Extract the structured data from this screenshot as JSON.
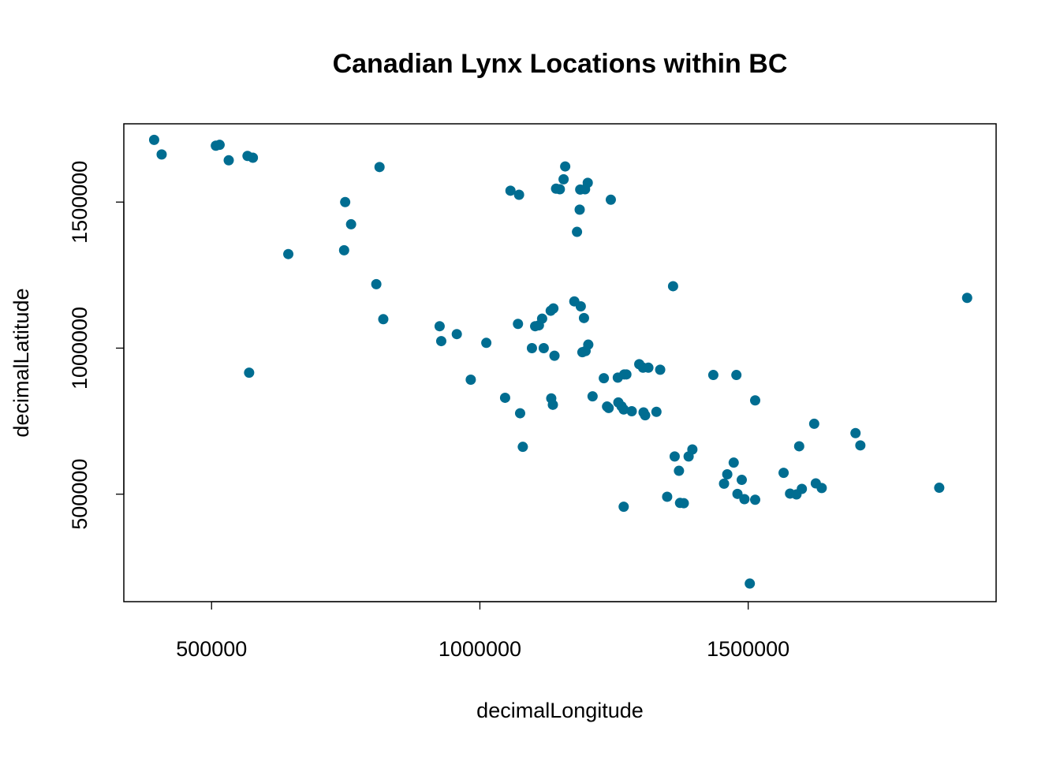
{
  "chart_data": {
    "type": "scatter",
    "title": "Canadian Lynx Locations within BC",
    "xlabel": "decimalLongitude",
    "ylabel": "decimalLatitude",
    "xlim": [
      336500,
      1962000
    ],
    "ylim": [
      132000,
      1768000
    ],
    "xticks": [
      {
        "value": 500000,
        "label": "500000"
      },
      {
        "value": 1000000,
        "label": "1000000"
      },
      {
        "value": 1500000,
        "label": "1500000"
      }
    ],
    "yticks": [
      {
        "value": 500000,
        "label": "500000"
      },
      {
        "value": 1000000,
        "label": "1000000"
      },
      {
        "value": 1500000,
        "label": "1500000"
      }
    ],
    "grid": false,
    "point_color": "#006d91",
    "points": [
      {
        "x": 393000,
        "y": 1713000
      },
      {
        "x": 407000,
        "y": 1663000
      },
      {
        "x": 508000,
        "y": 1693000
      },
      {
        "x": 515000,
        "y": 1696000
      },
      {
        "x": 532000,
        "y": 1643000
      },
      {
        "x": 567000,
        "y": 1658000
      },
      {
        "x": 577000,
        "y": 1652000
      },
      {
        "x": 570000,
        "y": 916000
      },
      {
        "x": 643000,
        "y": 1322000
      },
      {
        "x": 749000,
        "y": 1500000
      },
      {
        "x": 760000,
        "y": 1424000
      },
      {
        "x": 747000,
        "y": 1335000
      },
      {
        "x": 807000,
        "y": 1219000
      },
      {
        "x": 813000,
        "y": 1620000
      },
      {
        "x": 820000,
        "y": 1099000
      },
      {
        "x": 925000,
        "y": 1075000
      },
      {
        "x": 928000,
        "y": 1024000
      },
      {
        "x": 957000,
        "y": 1048000
      },
      {
        "x": 983000,
        "y": 892000
      },
      {
        "x": 1012000,
        "y": 1018000
      },
      {
        "x": 1047000,
        "y": 830000
      },
      {
        "x": 1057000,
        "y": 1539000
      },
      {
        "x": 1073000,
        "y": 1525000
      },
      {
        "x": 1071000,
        "y": 1083000
      },
      {
        "x": 1075000,
        "y": 777000
      },
      {
        "x": 1080000,
        "y": 662000
      },
      {
        "x": 1097000,
        "y": 1000000
      },
      {
        "x": 1103000,
        "y": 1075000
      },
      {
        "x": 1110000,
        "y": 1078000
      },
      {
        "x": 1116000,
        "y": 1101000
      },
      {
        "x": 1119000,
        "y": 1000000
      },
      {
        "x": 1132000,
        "y": 1128000
      },
      {
        "x": 1137000,
        "y": 1136000
      },
      {
        "x": 1133000,
        "y": 828000
      },
      {
        "x": 1136000,
        "y": 806000
      },
      {
        "x": 1139000,
        "y": 974000
      },
      {
        "x": 1142000,
        "y": 1546000
      },
      {
        "x": 1149000,
        "y": 1544000
      },
      {
        "x": 1156000,
        "y": 1578000
      },
      {
        "x": 1159000,
        "y": 1622000
      },
      {
        "x": 1176000,
        "y": 1160000
      },
      {
        "x": 1181000,
        "y": 1398000
      },
      {
        "x": 1186000,
        "y": 1474000
      },
      {
        "x": 1187000,
        "y": 1543000
      },
      {
        "x": 1188000,
        "y": 1143000
      },
      {
        "x": 1196000,
        "y": 1544000
      },
      {
        "x": 1201000,
        "y": 1566000
      },
      {
        "x": 1194000,
        "y": 1103000
      },
      {
        "x": 1191000,
        "y": 986000
      },
      {
        "x": 1197000,
        "y": 990000
      },
      {
        "x": 1202000,
        "y": 1012000
      },
      {
        "x": 1210000,
        "y": 835000
      },
      {
        "x": 1244000,
        "y": 1508000
      },
      {
        "x": 1231000,
        "y": 897000
      },
      {
        "x": 1237000,
        "y": 800000
      },
      {
        "x": 1240000,
        "y": 795000
      },
      {
        "x": 1257000,
        "y": 899000
      },
      {
        "x": 1258000,
        "y": 814000
      },
      {
        "x": 1264000,
        "y": 801000
      },
      {
        "x": 1268000,
        "y": 790000
      },
      {
        "x": 1269000,
        "y": 910000
      },
      {
        "x": 1273000,
        "y": 910000
      },
      {
        "x": 1268000,
        "y": 457000
      },
      {
        "x": 1283000,
        "y": 784000
      },
      {
        "x": 1297000,
        "y": 945000
      },
      {
        "x": 1304000,
        "y": 933000
      },
      {
        "x": 1305000,
        "y": 780000
      },
      {
        "x": 1308000,
        "y": 770000
      },
      {
        "x": 1314000,
        "y": 933000
      },
      {
        "x": 1329000,
        "y": 782000
      },
      {
        "x": 1336000,
        "y": 926000
      },
      {
        "x": 1349000,
        "y": 491000
      },
      {
        "x": 1360000,
        "y": 1212000
      },
      {
        "x": 1363000,
        "y": 629000
      },
      {
        "x": 1371000,
        "y": 580000
      },
      {
        "x": 1373000,
        "y": 470000
      },
      {
        "x": 1380000,
        "y": 469000
      },
      {
        "x": 1389000,
        "y": 629000
      },
      {
        "x": 1396000,
        "y": 653000
      },
      {
        "x": 1435000,
        "y": 908000
      },
      {
        "x": 1455000,
        "y": 536000
      },
      {
        "x": 1461000,
        "y": 568000
      },
      {
        "x": 1473000,
        "y": 608000
      },
      {
        "x": 1478000,
        "y": 908000
      },
      {
        "x": 1480000,
        "y": 501000
      },
      {
        "x": 1488000,
        "y": 549000
      },
      {
        "x": 1493000,
        "y": 483000
      },
      {
        "x": 1503000,
        "y": 194000
      },
      {
        "x": 1513000,
        "y": 481000
      },
      {
        "x": 1513000,
        "y": 821000
      },
      {
        "x": 1566000,
        "y": 573000
      },
      {
        "x": 1578000,
        "y": 502000
      },
      {
        "x": 1590000,
        "y": 499000
      },
      {
        "x": 1595000,
        "y": 664000
      },
      {
        "x": 1600000,
        "y": 518000
      },
      {
        "x": 1623000,
        "y": 741000
      },
      {
        "x": 1626000,
        "y": 537000
      },
      {
        "x": 1637000,
        "y": 521000
      },
      {
        "x": 1700000,
        "y": 709000
      },
      {
        "x": 1709000,
        "y": 667000
      },
      {
        "x": 1856000,
        "y": 522000
      },
      {
        "x": 1908000,
        "y": 1172000
      }
    ]
  }
}
